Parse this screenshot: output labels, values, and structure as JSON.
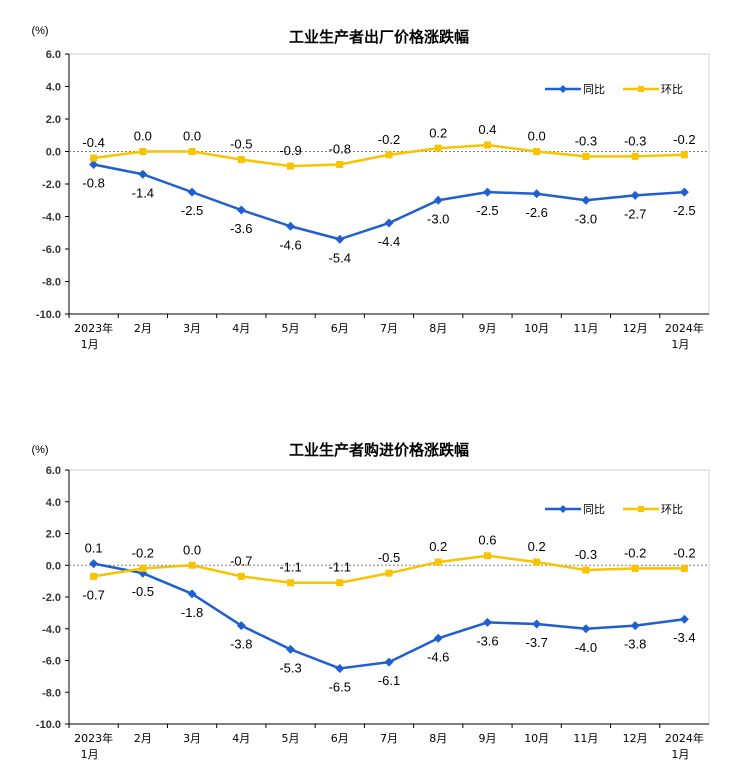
{
  "chart_data": [
    {
      "type": "line",
      "title": "工业生产者出厂价格涨跌幅",
      "unit": "(%)",
      "ylim": [
        -10.0,
        6.0
      ],
      "yticks": [
        "6.0",
        "4.0",
        "2.0",
        "0.0",
        "-2.0",
        "-4.0",
        "-6.0",
        "-8.0",
        "-10.0"
      ],
      "categories": [
        [
          "2023年",
          "1月"
        ],
        [
          "2月"
        ],
        [
          "3月"
        ],
        [
          "4月"
        ],
        [
          "5月"
        ],
        [
          "6月"
        ],
        [
          "7月"
        ],
        [
          "8月"
        ],
        [
          "9月"
        ],
        [
          "10月"
        ],
        [
          "11月"
        ],
        [
          "12月"
        ],
        [
          "2024年",
          "1月"
        ]
      ],
      "legend_position": "top-right",
      "series": [
        {
          "name": "同比",
          "color": "#1f5fcf",
          "marker": "diamond",
          "values": [
            -0.8,
            -1.4,
            -2.5,
            -3.6,
            -4.6,
            -5.4,
            -4.4,
            -3.0,
            -2.5,
            -2.6,
            -3.0,
            -2.7,
            -2.5
          ],
          "labels": [
            "-0.8",
            "-1.4",
            "-2.5",
            "-3.6",
            "-4.6",
            "-5.4",
            "-4.4",
            "-3.0",
            "-2.5",
            "-2.6",
            "-3.0",
            "-2.7",
            "-2.5"
          ]
        },
        {
          "name": "环比",
          "color": "#f8c300",
          "marker": "square",
          "values": [
            -0.4,
            0.0,
            0.0,
            -0.5,
            -0.9,
            -0.8,
            -0.2,
            0.2,
            0.4,
            0.0,
            -0.3,
            -0.3,
            -0.2
          ],
          "labels": [
            "-0.4",
            "0.0",
            "0.0",
            "-0.5",
            "-0.9",
            "-0.8",
            "-0.2",
            "0.2",
            "0.4",
            "0.0",
            "-0.3",
            "-0.3",
            "-0.2"
          ]
        }
      ]
    },
    {
      "type": "line",
      "title": "工业生产者购进价格涨跌幅",
      "unit": "(%)",
      "ylim": [
        -10.0,
        6.0
      ],
      "yticks": [
        "6.0",
        "4.0",
        "2.0",
        "0.0",
        "-2.0",
        "-4.0",
        "-6.0",
        "-8.0",
        "-10.0"
      ],
      "categories": [
        [
          "2023年",
          "1月"
        ],
        [
          "2月"
        ],
        [
          "3月"
        ],
        [
          "4月"
        ],
        [
          "5月"
        ],
        [
          "6月"
        ],
        [
          "7月"
        ],
        [
          "8月"
        ],
        [
          "9月"
        ],
        [
          "10月"
        ],
        [
          "11月"
        ],
        [
          "12月"
        ],
        [
          "2024年",
          "1月"
        ]
      ],
      "legend_position": "top-right",
      "series": [
        {
          "name": "同比",
          "color": "#1f5fcf",
          "marker": "diamond",
          "values": [
            0.1,
            -0.5,
            -1.8,
            -3.8,
            -5.3,
            -6.5,
            -6.1,
            -4.6,
            -3.6,
            -3.7,
            -4.0,
            -3.8,
            -3.4
          ],
          "labels": [
            "0.1",
            "-0.5",
            "-1.8",
            "-3.8",
            "-5.3",
            "-6.5",
            "-6.1",
            "-4.6",
            "-3.6",
            "-3.7",
            "-4.0",
            "-3.8",
            "-3.4"
          ]
        },
        {
          "name": "环比",
          "color": "#f8c300",
          "marker": "square",
          "values": [
            -0.7,
            -0.2,
            0.0,
            -0.7,
            -1.1,
            -1.1,
            -0.5,
            0.2,
            0.6,
            0.2,
            -0.3,
            -0.2,
            -0.2
          ],
          "labels": [
            "-0.7",
            "-0.2",
            "0.0",
            "-0.7",
            "-1.1",
            "-1.1",
            "-0.5",
            "0.2",
            "0.6",
            "0.2",
            "-0.3",
            "-0.2",
            "-0.2"
          ]
        }
      ]
    }
  ]
}
